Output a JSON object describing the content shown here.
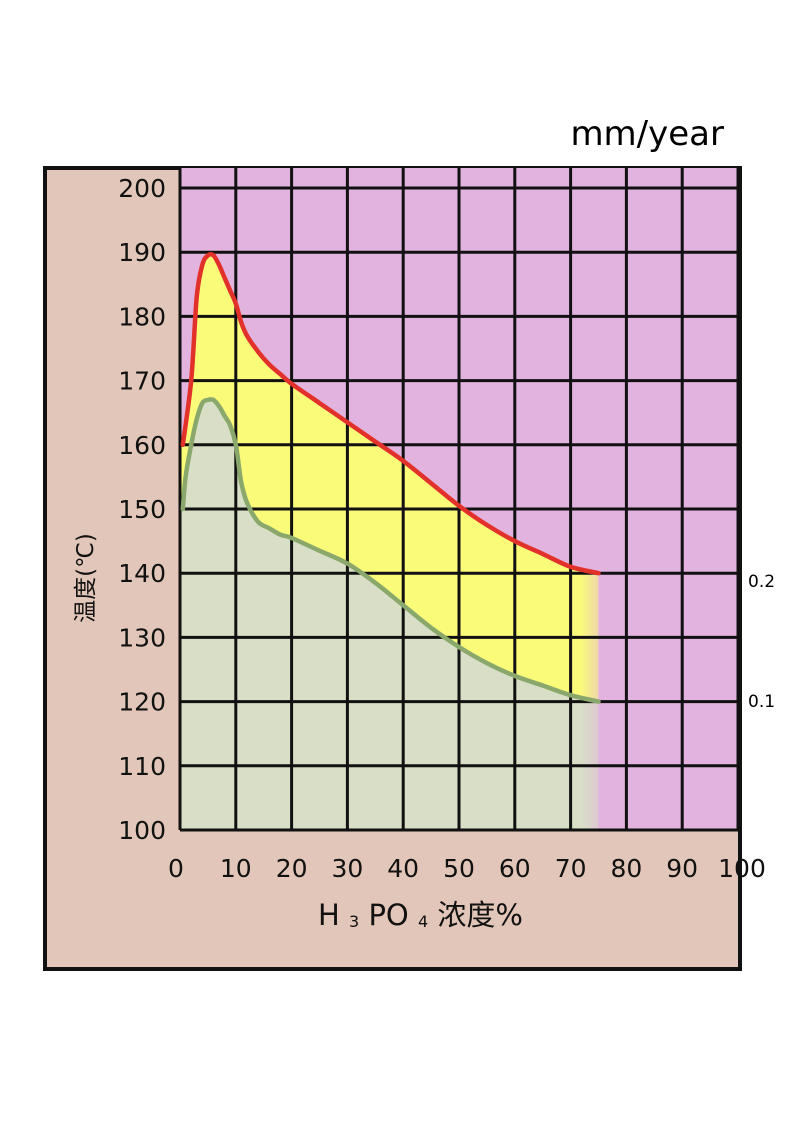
{
  "chart_data": {
    "type": "area",
    "title": "",
    "unit_label": "mm/year",
    "xlabel": {
      "prefix": "H",
      "sub1": "3",
      "mid": "PO",
      "sub2": "4",
      "suffix": " 浓度%"
    },
    "ylabel": "温度(℃)",
    "xlim": [
      0,
      100
    ],
    "ylim": [
      100,
      200
    ],
    "x_ticks": [
      "0",
      "10",
      "20",
      "30",
      "40",
      "50",
      "60",
      "70",
      "80",
      "90",
      "100"
    ],
    "y_ticks": [
      "100",
      "110",
      "120",
      "130",
      "140",
      "150",
      "160",
      "170",
      "180",
      "190",
      "200"
    ],
    "grid": true,
    "colors": {
      "outer_frame": "#e2c6b9",
      "region_above_0_2": "#e2b3df",
      "region_0_1_to_0_2": "#fbfb7a",
      "region_below_0_1": "#d8dfc6",
      "line_0_2": "#e2302a",
      "line_0_1": "#8aa86b",
      "grid": "#111111"
    },
    "series": [
      {
        "name": "0.2",
        "x": [
          0.5,
          2,
          3,
          4,
          5,
          6,
          7,
          8,
          9,
          10,
          11,
          12,
          14,
          16,
          18,
          20,
          25,
          30,
          35,
          40,
          45,
          50,
          55,
          60,
          65,
          70,
          75
        ],
        "values": [
          160,
          170,
          183,
          188,
          189.5,
          189.5,
          188,
          186,
          184,
          182,
          179,
          177,
          174.5,
          172.5,
          171,
          169.5,
          166.5,
          163.5,
          160.5,
          157.5,
          154,
          150.5,
          147.5,
          145,
          143,
          141,
          140
        ]
      },
      {
        "name": "0.1",
        "x": [
          0.5,
          1,
          2,
          3,
          4,
          5,
          6,
          7,
          8,
          9,
          10,
          10.5,
          11,
          12,
          14,
          16,
          18,
          20,
          25,
          30,
          35,
          40,
          45,
          50,
          55,
          60,
          65,
          70,
          75
        ],
        "values": [
          150,
          155,
          160,
          164,
          166.5,
          167,
          167,
          166,
          164.5,
          163,
          160,
          157,
          154,
          151,
          148,
          147,
          146,
          145.5,
          143.5,
          141.5,
          138.5,
          135,
          131.5,
          128.5,
          126,
          124,
          122.5,
          121,
          120
        ]
      }
    ]
  }
}
